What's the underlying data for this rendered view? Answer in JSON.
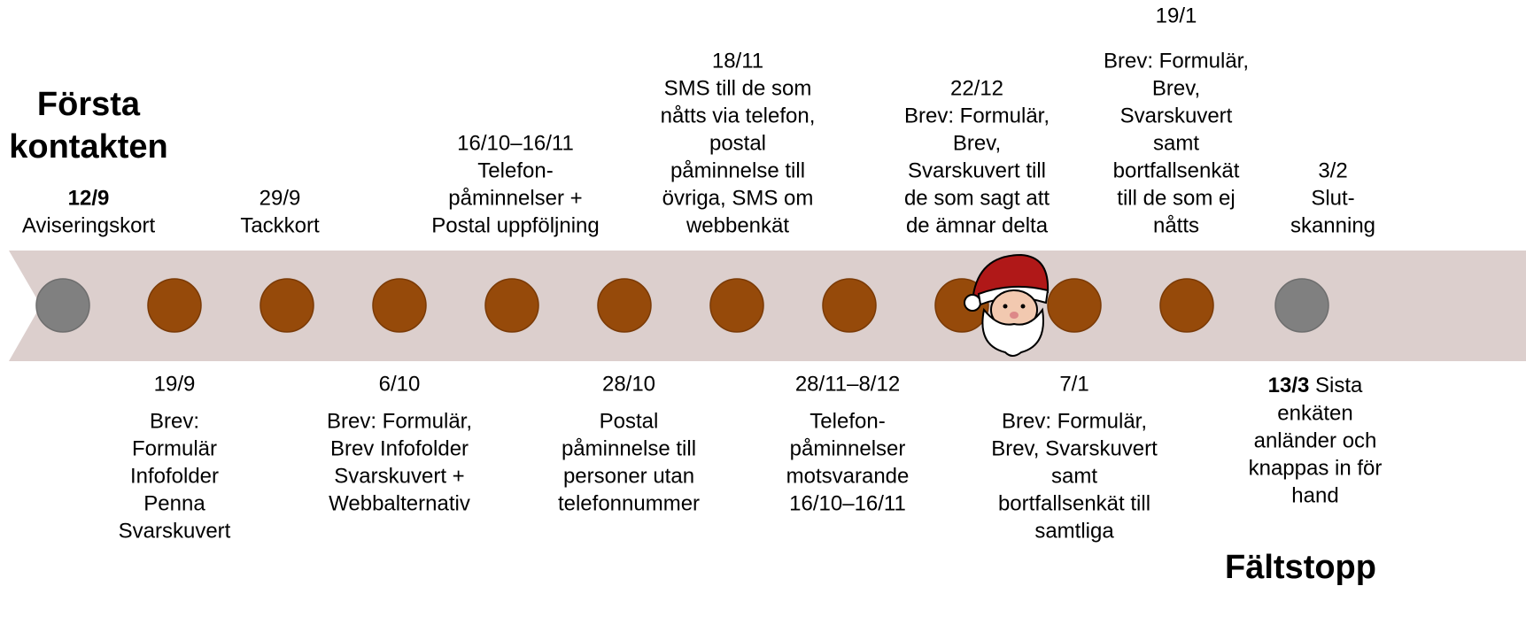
{
  "headings": {
    "start": [
      "Första",
      "kontakten"
    ],
    "end": "Fältstopp"
  },
  "above": [
    {
      "date": "12/9",
      "text": [
        "Aviseringskort"
      ]
    },
    {
      "date": "29/9",
      "text": [
        "Tackkort"
      ]
    },
    {
      "date": "16/10–16/11",
      "text": [
        "Telefon-",
        "påminnelser +",
        "Postal uppföljning"
      ]
    },
    {
      "date": "18/11",
      "text": [
        "SMS till de som",
        "nåtts via telefon,",
        "postal",
        "påminnelse till",
        "övriga, SMS om",
        "webbenkät"
      ]
    },
    {
      "date": "22/12",
      "text": [
        "Brev: Formulär,",
        "Brev,",
        "Svarskuvert till",
        "de som sagt att",
        "de ämnar delta"
      ]
    },
    {
      "date": "19/1",
      "text": [
        "Brev: Formulär,",
        "Brev,",
        "Svarskuvert",
        "samt",
        "bortfallsenkät",
        "till de som ej",
        "nåtts"
      ]
    },
    {
      "date": "3/2",
      "text": [
        "Slut-",
        "skanning"
      ]
    }
  ],
  "below": [
    {
      "date": "19/9",
      "text": [
        "Brev:",
        "Formulär",
        "Infofolder",
        "Penna",
        "Svarskuvert"
      ]
    },
    {
      "date": "6/10",
      "text": [
        "Brev: Formulär,",
        "Brev Infofolder",
        "Svarskuvert +",
        "Webbalternativ"
      ]
    },
    {
      "date": "28/10",
      "text": [
        "Postal",
        "påminnelse till",
        "personer utan",
        "telefonnummer"
      ]
    },
    {
      "date": "28/11–8/12",
      "text": [
        "Telefon-",
        "påminnelser",
        "motsvarande",
        "16/10–16/11"
      ]
    },
    {
      "date": "7/1",
      "text": [
        "Brev: Formulär,",
        "Brev, Svarskuvert",
        "samt",
        "bortfallsenkät till",
        "samtliga"
      ]
    },
    {
      "date": "13/3",
      "text": [
        "Sista",
        "enkäten",
        "anländer och",
        "knappas in för",
        "hand"
      ]
    }
  ]
}
